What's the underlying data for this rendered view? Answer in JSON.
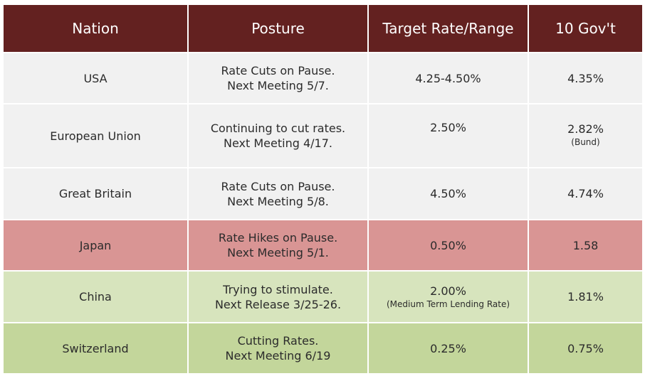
{
  "table": {
    "headers": [
      "Nation",
      "Posture",
      "Target Rate/Range",
      "10 Gov't"
    ],
    "rows": [
      {
        "nation": "USA",
        "posture": [
          "Rate Cuts on Pause.",
          "Next Meeting 5/7."
        ],
        "rate": "4.25-4.50%",
        "rate_note": "",
        "gov": "4.35%",
        "gov_note": "",
        "color": "#f1f1f1"
      },
      {
        "nation": "European Union",
        "posture": [
          "Continuing to cut rates.",
          "Next Meeting 4/17."
        ],
        "rate": "2.50%",
        "rate_note": "",
        "gov": "2.82%",
        "gov_note": "(Bund)",
        "color": "#f1f1f1"
      },
      {
        "nation": "Great Britain",
        "posture": [
          "Rate Cuts on Pause.",
          "Next Meeting 5/8."
        ],
        "rate": "4.50%",
        "rate_note": "",
        "gov": "4.74%",
        "gov_note": "",
        "color": "#f1f1f1"
      },
      {
        "nation": "Japan",
        "posture": [
          "Rate Hikes on Pause.",
          "Next Meeting 5/1."
        ],
        "rate": "0.50%",
        "rate_note": "",
        "gov": "1.58",
        "gov_note": "",
        "color": "#d99594"
      },
      {
        "nation": "China",
        "posture": [
          "Trying to stimulate.",
          "Next Release 3/25-26."
        ],
        "rate": "2.00%",
        "rate_note": "(Medium Term Lending Rate)",
        "gov": "1.81%",
        "gov_note": "",
        "color": "#d7e4bd"
      },
      {
        "nation": "Switzerland",
        "posture": [
          "Cutting Rates.",
          "Next Meeting 6/19"
        ],
        "rate": "0.25%",
        "rate_note": "",
        "gov": "0.75%",
        "gov_note": "",
        "color": "#c3d69b"
      }
    ],
    "header_color": "#632120"
  }
}
